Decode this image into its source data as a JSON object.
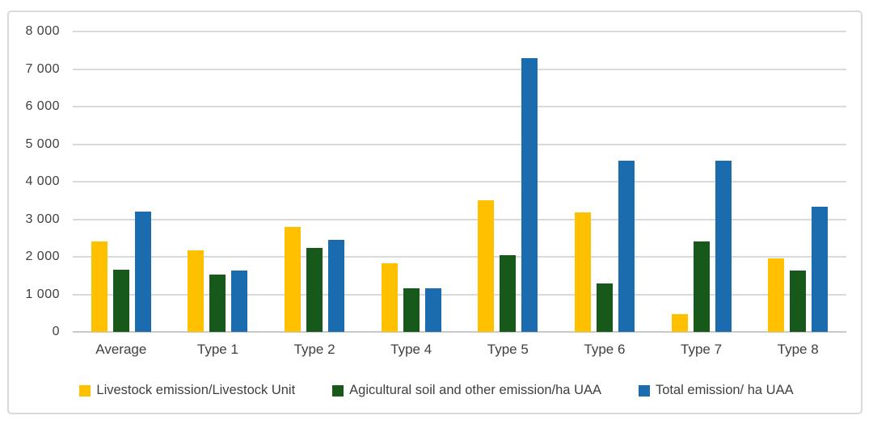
{
  "figure": {
    "background": "#ffffff",
    "border_color": "#d9d9d9",
    "gridline_color": "#d9d9d9",
    "baseline_color": "#c9c9c9",
    "text_color": "#404040"
  },
  "chart_data": {
    "type": "bar",
    "title": "",
    "xlabel": "",
    "ylabel": "",
    "categories": [
      "Average",
      "Type 1",
      "Type 2",
      "Type 4",
      "Type 5",
      "Type 6",
      "Type 7",
      "Type 8"
    ],
    "series": [
      {
        "name": "Livestock emission/Livestock Unit",
        "color": "#FFC000",
        "values": [
          2400,
          2180,
          2800,
          1820,
          3500,
          3180,
          470,
          1950
        ]
      },
      {
        "name": "Agicultural soil and other emission/ha UAA",
        "color": "#16591B",
        "values": [
          1650,
          1530,
          2230,
          1160,
          2050,
          1290,
          2400,
          1630
        ]
      },
      {
        "name": "Total emission/ ha UAA",
        "color": "#1B6CAF",
        "values": [
          3200,
          1630,
          2450,
          1170,
          7300,
          4550,
          4570,
          3340
        ]
      }
    ],
    "ylim": [
      0,
      8000
    ],
    "ytick_step": 1000,
    "ytick_labels_top_to_bottom": [
      "8 000",
      "7 000",
      "6 000",
      "5 000",
      "4 000",
      "3 000",
      "2 000",
      "1 000",
      "0"
    ],
    "grid": true,
    "legend_position": "bottom"
  }
}
